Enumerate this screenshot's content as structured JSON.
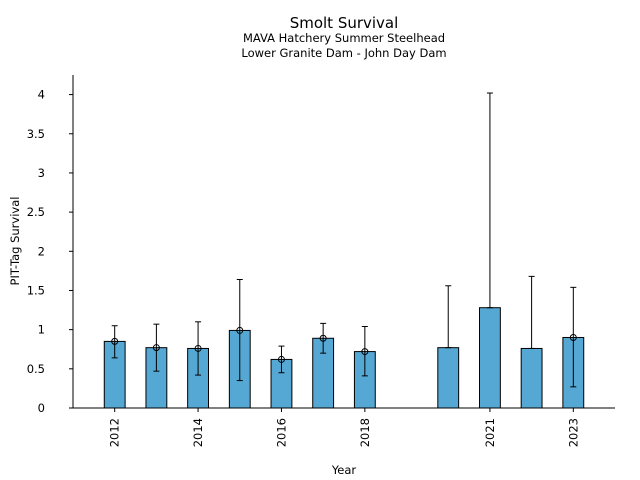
{
  "chart_data": {
    "type": "bar",
    "title": "Smolt Survival",
    "subtitle_lines": [
      "MAVA Hatchery Summer Steelhead",
      "Lower Granite Dam - John Day Dam"
    ],
    "xlabel": "Year",
    "ylabel": "PIT-Tag Survival",
    "x_range": [
      2011.0,
      2024.0
    ],
    "ylim": [
      0,
      4.25
    ],
    "y_ticks": [
      0,
      0.5,
      1,
      1.5,
      2,
      2.5,
      3,
      3.5,
      4
    ],
    "y_tick_labels": [
      "0",
      "0.5",
      "1",
      "1.5",
      "2",
      "2.5",
      "3",
      "3.5",
      "4"
    ],
    "x_ticks": [
      2012,
      2014,
      2016,
      2018,
      2021,
      2023
    ],
    "x_tick_labels": [
      "2012",
      "2014",
      "2016",
      "2018",
      "2021",
      "2023"
    ],
    "bar_color": "#56a8d4",
    "grid": false,
    "points": [
      {
        "year": 2012,
        "value": 0.85,
        "lower": 0.64,
        "upper": 1.05,
        "marker": true
      },
      {
        "year": 2013,
        "value": 0.77,
        "lower": 0.47,
        "upper": 1.07,
        "marker": true
      },
      {
        "year": 2014,
        "value": 0.76,
        "lower": 0.42,
        "upper": 1.1,
        "marker": true
      },
      {
        "year": 2015,
        "value": 0.99,
        "lower": 0.35,
        "upper": 1.64,
        "marker": true
      },
      {
        "year": 2016,
        "value": 0.62,
        "lower": 0.45,
        "upper": 0.79,
        "marker": true
      },
      {
        "year": 2017,
        "value": 0.89,
        "lower": 0.7,
        "upper": 1.08,
        "marker": true
      },
      {
        "year": 2018,
        "value": 0.72,
        "lower": 0.41,
        "upper": 1.04,
        "marker": true
      },
      {
        "year": 2020,
        "value": 0.77,
        "lower": 0.77,
        "upper": 1.56,
        "marker": false
      },
      {
        "year": 2021,
        "value": 1.28,
        "lower": 1.28,
        "upper": 4.02,
        "marker": false
      },
      {
        "year": 2022,
        "value": 0.76,
        "lower": 0.76,
        "upper": 1.68,
        "marker": false
      },
      {
        "year": 2023,
        "value": 0.9,
        "lower": 0.27,
        "upper": 1.54,
        "marker": true
      }
    ]
  }
}
